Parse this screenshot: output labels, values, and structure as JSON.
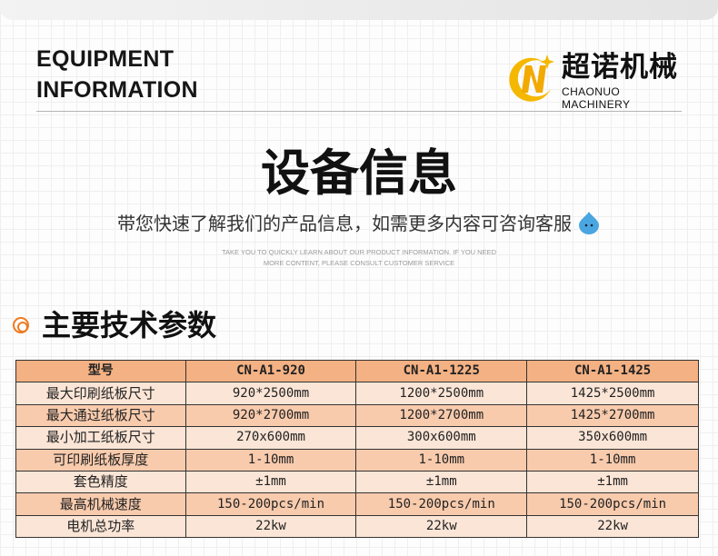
{
  "header": {
    "title_line1": "EQUIPMENT",
    "title_line2": "INFORMATION"
  },
  "logo": {
    "cn": "超诺机械",
    "en": "CHAONUO MACHINERY",
    "colors": [
      "#f5b800",
      "#ffd84a"
    ]
  },
  "hero": {
    "title": "设备信息",
    "subtitle": "带您快速了解我们的产品信息，如需更多内容可咨询客服",
    "en_line1": "TAKE YOU TO QUICKLY LEARN ABOUT OUR PRODUCT INFORMATION. IF YOU NEED",
    "en_line2": "MORE CONTENT, PLEASE CONSULT CUSTOMER SERVICE",
    "icon": "chat-droplet-icon"
  },
  "section": {
    "title": "主要技术参数",
    "accent": "#f07a1f"
  },
  "table": {
    "headers": [
      "型号",
      "CN-A1-920",
      "CN-A1-1225",
      "CN-A1-1425"
    ],
    "rows": [
      [
        "最大印刷纸板尺寸",
        "920*2500mm",
        "1200*2500mm",
        "1425*2500mm"
      ],
      [
        "最大通过纸板尺寸",
        "920*2700mm",
        "1200*2700mm",
        "1425*2700mm"
      ],
      [
        "最小加工纸板尺寸",
        "270x600mm",
        "300x600mm",
        "350x600mm"
      ],
      [
        "可印刷纸板厚度",
        "1-10mm",
        "1-10mm",
        "1-10mm"
      ],
      [
        "套色精度",
        "±1mm",
        "±1mm",
        "±1mm"
      ],
      [
        "最高机械速度",
        "150-200pcs/min",
        "150-200pcs/min",
        "150-200pcs/min"
      ],
      [
        "电机总功率",
        "22kw",
        "22kw",
        "22kw"
      ]
    ],
    "colors": {
      "header": "#f4b183",
      "row_light": "#fbe5d6",
      "row_dark": "#f8cbad"
    }
  }
}
